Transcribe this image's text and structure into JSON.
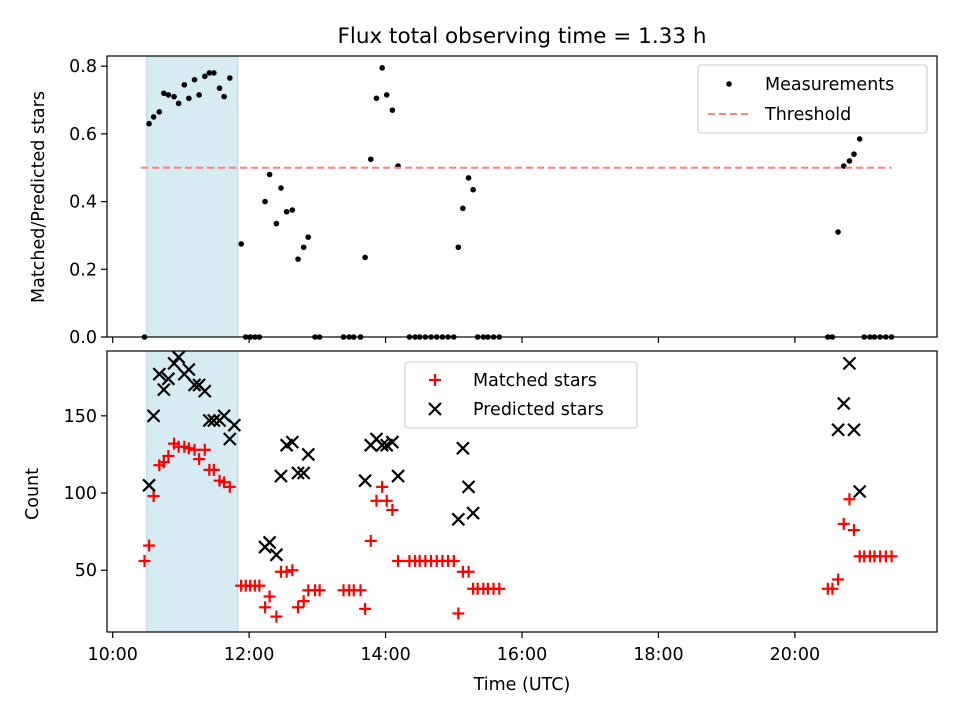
{
  "chart_data": [
    {
      "type": "scatter",
      "title": "Flux total observing time = 1.33 h",
      "xlabel": "",
      "ylabel": "Matched/Predicted stars",
      "xlim": [
        "09:55",
        "22:05"
      ],
      "ylim": [
        0,
        0.83
      ],
      "yticks": [
        0.0,
        0.2,
        0.4,
        0.6,
        0.8
      ],
      "ytick_labels": [
        "0.0",
        "0.2",
        "0.4",
        "0.6",
        "0.8"
      ],
      "highlight_span": [
        "10:30",
        "11:50"
      ],
      "legend_position": "top-right",
      "series": [
        {
          "name": "Measurements",
          "marker": "dot",
          "color": "#000000",
          "points": [
            [
              "10:28",
              0.0
            ],
            [
              "10:32",
              0.63
            ],
            [
              "10:36",
              0.65
            ],
            [
              "10:41",
              0.665
            ],
            [
              "10:45",
              0.72
            ],
            [
              "10:49",
              0.715
            ],
            [
              "10:54",
              0.71
            ],
            [
              "10:58",
              0.69
            ],
            [
              "11:03",
              0.745
            ],
            [
              "11:07",
              0.705
            ],
            [
              "11:12",
              0.76
            ],
            [
              "11:16",
              0.715
            ],
            [
              "11:21",
              0.77
            ],
            [
              "11:25",
              0.78
            ],
            [
              "11:29",
              0.78
            ],
            [
              "11:34",
              0.735
            ],
            [
              "11:38",
              0.71
            ],
            [
              "11:43",
              0.765
            ],
            [
              "11:53",
              0.275
            ],
            [
              "11:57",
              0.0
            ],
            [
              "12:01",
              0.0
            ],
            [
              "12:05",
              0.0
            ],
            [
              "12:09",
              0.0
            ],
            [
              "12:14",
              0.4
            ],
            [
              "12:18",
              0.48
            ],
            [
              "12:24",
              0.335
            ],
            [
              "12:28",
              0.44
            ],
            [
              "12:33",
              0.37
            ],
            [
              "12:38",
              0.375
            ],
            [
              "12:43",
              0.23
            ],
            [
              "12:48",
              0.265
            ],
            [
              "12:52",
              0.295
            ],
            [
              "12:58",
              0.0
            ],
            [
              "13:02",
              0.0
            ],
            [
              "13:23",
              0.0
            ],
            [
              "13:28",
              0.0
            ],
            [
              "13:32",
              0.0
            ],
            [
              "13:38",
              0.0
            ],
            [
              "13:42",
              0.235
            ],
            [
              "13:47",
              0.525
            ],
            [
              "13:52",
              0.705
            ],
            [
              "13:57",
              0.795
            ],
            [
              "14:01",
              0.715
            ],
            [
              "14:06",
              0.67
            ],
            [
              "14:11",
              0.505
            ],
            [
              "14:21",
              0.0
            ],
            [
              "14:26",
              0.0
            ],
            [
              "14:30",
              0.0
            ],
            [
              "14:35",
              0.0
            ],
            [
              "14:40",
              0.0
            ],
            [
              "14:45",
              0.0
            ],
            [
              "14:50",
              0.0
            ],
            [
              "14:55",
              0.0
            ],
            [
              "15:00",
              0.0
            ],
            [
              "15:04",
              0.265
            ],
            [
              "15:08",
              0.38
            ],
            [
              "15:13",
              0.47
            ],
            [
              "15:17",
              0.435
            ],
            [
              "15:21",
              0.0
            ],
            [
              "15:26",
              0.0
            ],
            [
              "15:30",
              0.0
            ],
            [
              "15:35",
              0.0
            ],
            [
              "15:40",
              0.0
            ],
            [
              "20:29",
              0.0
            ],
            [
              "20:33",
              0.0
            ],
            [
              "20:38",
              0.31
            ],
            [
              "20:43",
              0.505
            ],
            [
              "20:48",
              0.52
            ],
            [
              "20:52",
              0.54
            ],
            [
              "20:57",
              0.585
            ],
            [
              "21:01",
              0.0
            ],
            [
              "21:06",
              0.0
            ],
            [
              "21:10",
              0.0
            ],
            [
              "21:15",
              0.0
            ],
            [
              "21:20",
              0.0
            ],
            [
              "21:25",
              0.0
            ]
          ]
        },
        {
          "name": "Threshold",
          "marker": "dashed-line",
          "color": "#ff7f7f",
          "points": [
            [
              "10:25",
              0.5
            ],
            [
              "21:25",
              0.5
            ]
          ]
        }
      ]
    },
    {
      "type": "scatter",
      "title": "",
      "xlabel": "Time (UTC)",
      "ylabel": "Count",
      "xlim": [
        "09:55",
        "22:05"
      ],
      "ylim": [
        10,
        192
      ],
      "yticks": [
        50,
        100,
        150
      ],
      "ytick_labels": [
        "50",
        "100",
        "150"
      ],
      "xticks": [
        "10:00",
        "12:00",
        "14:00",
        "16:00",
        "18:00",
        "20:00"
      ],
      "xtick_labels": [
        "10:00",
        "12:00",
        "14:00",
        "16:00",
        "18:00",
        "20:00"
      ],
      "highlight_span": [
        "10:30",
        "11:50"
      ],
      "legend_position": "top-center",
      "series": [
        {
          "name": "Matched stars",
          "marker": "plus",
          "color": "#ff0000",
          "points": [
            [
              "10:28",
              56
            ],
            [
              "10:32",
              66
            ],
            [
              "10:36",
              98
            ],
            [
              "10:41",
              118
            ],
            [
              "10:45",
              120
            ],
            [
              "10:49",
              124
            ],
            [
              "10:54",
              132
            ],
            [
              "10:58",
              130
            ],
            [
              "11:03",
              130
            ],
            [
              "11:07",
              129
            ],
            [
              "11:12",
              128
            ],
            [
              "11:16",
              122
            ],
            [
              "11:21",
              128
            ],
            [
              "11:25",
              115
            ],
            [
              "11:29",
              115
            ],
            [
              "11:34",
              108
            ],
            [
              "11:38",
              107
            ],
            [
              "11:43",
              104
            ],
            [
              "11:53",
              40
            ],
            [
              "11:57",
              40
            ],
            [
              "12:01",
              40
            ],
            [
              "12:05",
              40
            ],
            [
              "12:09",
              40
            ],
            [
              "12:14",
              26
            ],
            [
              "12:18",
              33
            ],
            [
              "12:24",
              20
            ],
            [
              "12:28",
              49
            ],
            [
              "12:33",
              49
            ],
            [
              "12:38",
              50
            ],
            [
              "12:43",
              26
            ],
            [
              "12:48",
              30
            ],
            [
              "12:52",
              37
            ],
            [
              "12:58",
              37
            ],
            [
              "13:02",
              37
            ],
            [
              "13:23",
              37
            ],
            [
              "13:28",
              37
            ],
            [
              "13:32",
              37
            ],
            [
              "13:38",
              37
            ],
            [
              "13:42",
              25
            ],
            [
              "13:47",
              69
            ],
            [
              "13:52",
              95
            ],
            [
              "13:57",
              104
            ],
            [
              "14:01",
              95
            ],
            [
              "14:06",
              89
            ],
            [
              "14:11",
              56
            ],
            [
              "14:21",
              56
            ],
            [
              "14:26",
              56
            ],
            [
              "14:30",
              56
            ],
            [
              "14:35",
              56
            ],
            [
              "14:40",
              56
            ],
            [
              "14:45",
              56
            ],
            [
              "14:50",
              56
            ],
            [
              "14:55",
              56
            ],
            [
              "15:00",
              56
            ],
            [
              "15:04",
              22
            ],
            [
              "15:08",
              49
            ],
            [
              "15:13",
              49
            ],
            [
              "15:17",
              38
            ],
            [
              "15:21",
              38
            ],
            [
              "15:26",
              38
            ],
            [
              "15:30",
              38
            ],
            [
              "15:35",
              38
            ],
            [
              "15:40",
              38
            ],
            [
              "20:29",
              38
            ],
            [
              "20:33",
              38
            ],
            [
              "20:38",
              44
            ],
            [
              "20:43",
              80
            ],
            [
              "20:48",
              96
            ],
            [
              "20:52",
              76
            ],
            [
              "20:57",
              59
            ],
            [
              "21:01",
              59
            ],
            [
              "21:06",
              59
            ],
            [
              "21:10",
              59
            ],
            [
              "21:15",
              59
            ],
            [
              "21:20",
              59
            ],
            [
              "21:25",
              59
            ]
          ]
        },
        {
          "name": "Predicted stars",
          "marker": "x",
          "color": "#000000",
          "points": [
            [
              "10:32",
              105
            ],
            [
              "10:36",
              150
            ],
            [
              "10:41",
              177
            ],
            [
              "10:45",
              167
            ],
            [
              "10:49",
              174
            ],
            [
              "10:54",
              184
            ],
            [
              "10:58",
              188
            ],
            [
              "11:03",
              177
            ],
            [
              "11:07",
              180
            ],
            [
              "11:12",
              170
            ],
            [
              "11:16",
              170
            ],
            [
              "11:21",
              166
            ],
            [
              "11:25",
              147
            ],
            [
              "11:29",
              147
            ],
            [
              "11:34",
              147
            ],
            [
              "11:38",
              150
            ],
            [
              "11:43",
              135
            ],
            [
              "11:47",
              144
            ],
            [
              "12:14",
              65
            ],
            [
              "12:18",
              68
            ],
            [
              "12:24",
              60
            ],
            [
              "12:28",
              111
            ],
            [
              "12:33",
              131
            ],
            [
              "12:38",
              133
            ],
            [
              "12:43",
              113
            ],
            [
              "12:48",
              113
            ],
            [
              "12:52",
              125
            ],
            [
              "13:42",
              108
            ],
            [
              "13:47",
              131
            ],
            [
              "13:52",
              135
            ],
            [
              "13:57",
              131
            ],
            [
              "14:01",
              131
            ],
            [
              "14:06",
              133
            ],
            [
              "14:11",
              111
            ],
            [
              "15:04",
              83
            ],
            [
              "15:08",
              129
            ],
            [
              "15:13",
              104
            ],
            [
              "15:17",
              87
            ],
            [
              "20:38",
              141
            ],
            [
              "20:43",
              158
            ],
            [
              "20:48",
              184
            ],
            [
              "20:52",
              141
            ],
            [
              "20:57",
              101
            ]
          ]
        }
      ]
    }
  ]
}
